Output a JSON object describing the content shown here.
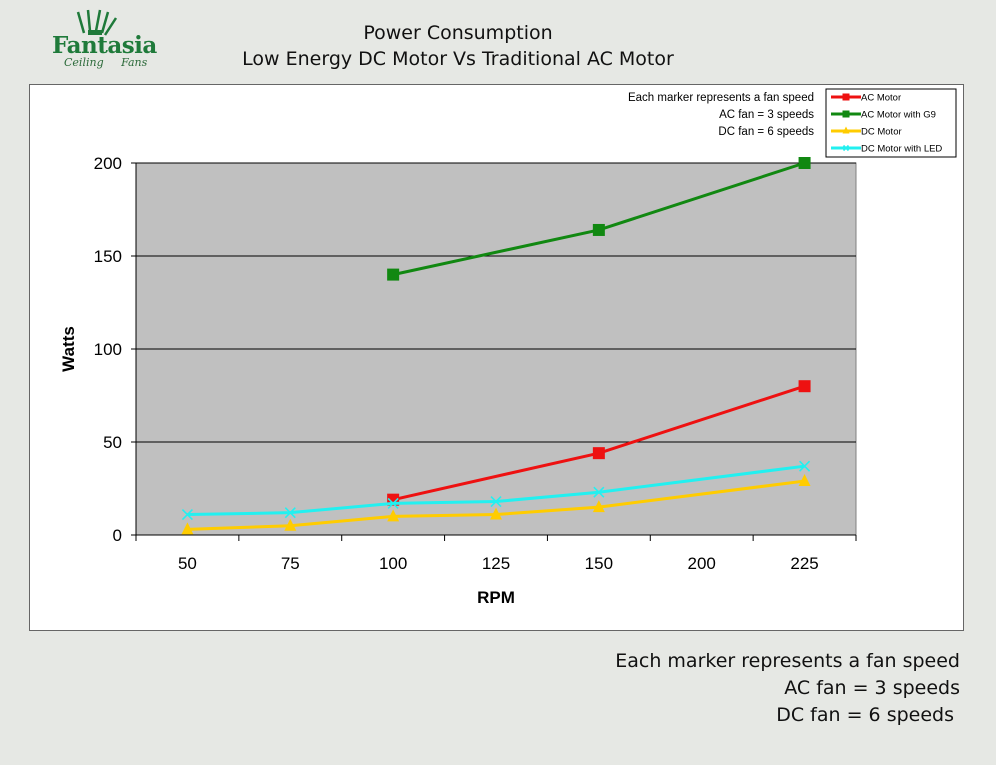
{
  "logo": {
    "word": "Fantasia",
    "sub": "Ceiling     Fans"
  },
  "header": {
    "title_line1": "Power Consumption",
    "title_line2": "Low Energy DC Motor Vs Traditional AC Motor"
  },
  "notes": {
    "lines": [
      "Each marker represents a fan speed",
      "AC fan = 3 speeds",
      "DC fan = 6 speeds"
    ]
  },
  "colors": {
    "background": "#e6e8e4",
    "plot": "#c0c0c0"
  },
  "chart_data": {
    "type": "line",
    "xlabel": "RPM",
    "ylabel": "Watts",
    "categories": [
      "50",
      "75",
      "100",
      "125",
      "150",
      "200",
      "225"
    ],
    "ylim": [
      0,
      200
    ],
    "yticks": [
      0,
      50,
      100,
      150,
      200
    ],
    "grid": true,
    "legend_position": "top-right",
    "series": [
      {
        "name": "AC Motor",
        "color": "#ee1111",
        "marker": "square",
        "values": [
          null,
          null,
          19,
          null,
          44,
          null,
          80
        ]
      },
      {
        "name": "AC Motor with G9",
        "color": "#118811",
        "marker": "square",
        "values": [
          null,
          null,
          140,
          null,
          164,
          null,
          200
        ]
      },
      {
        "name": "DC Motor",
        "color": "#ffcc00",
        "marker": "triangle",
        "values": [
          3,
          5,
          10,
          11,
          15,
          null,
          29
        ]
      },
      {
        "name": "DC Motor with LED",
        "color": "#22f0f0",
        "marker": "x",
        "values": [
          11,
          12,
          17,
          18,
          23,
          null,
          37
        ]
      }
    ]
  }
}
